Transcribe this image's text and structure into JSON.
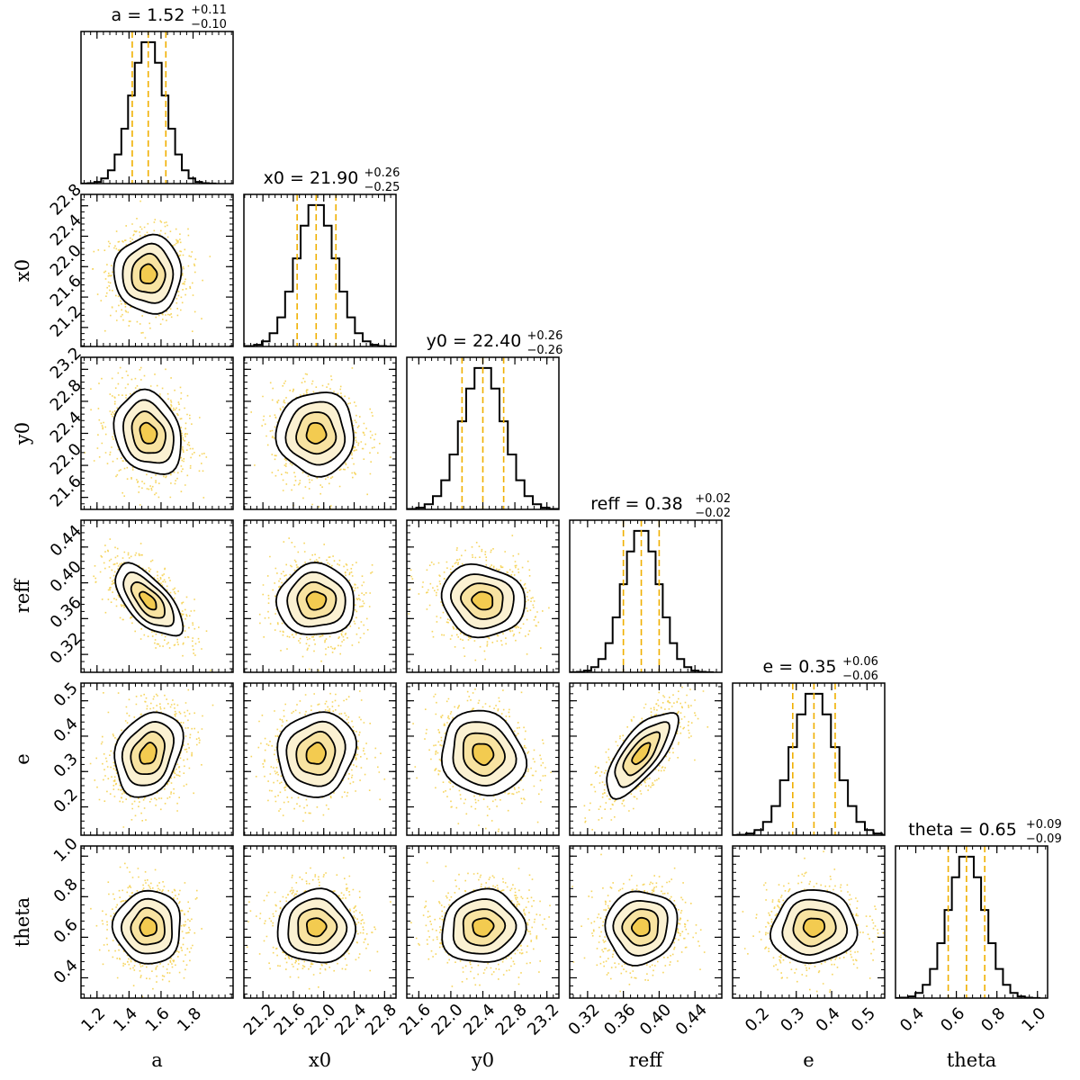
{
  "chart_data": {
    "type": "corner",
    "colors": {
      "scatter": "#f2c31b",
      "fill_light": "#fbf0d0",
      "fill_mid": "#f8e29e",
      "fill_dark": "#f2c94c",
      "contour": "#000000",
      "quantile_line": "#f0b000",
      "histogram": "#000000"
    },
    "parameters": [
      {
        "name": "a",
        "label": "a",
        "title": "a = 1.52",
        "err_plus": "+0.11",
        "err_minus": "−0.10",
        "median": 1.52,
        "q16": 1.42,
        "q84": 1.63,
        "sigma": 0.105,
        "range": [
          1.1,
          2.05
        ],
        "ticks": [
          1.2,
          1.4,
          1.6,
          1.8
        ],
        "tick_labels": [
          "1.2",
          "1.4",
          "1.6",
          "1.8"
        ]
      },
      {
        "name": "x0",
        "label": "x0",
        "title": "x0 = 21.90",
        "err_plus": "+0.26",
        "err_minus": "−0.25",
        "median": 21.9,
        "q16": 21.65,
        "q84": 22.16,
        "sigma": 0.255,
        "range": [
          20.95,
          22.95
        ],
        "ticks": [
          21.2,
          21.6,
          22.0,
          22.4,
          22.8
        ],
        "tick_labels": [
          "21.2",
          "21.6",
          "22.0",
          "22.4",
          "22.8"
        ]
      },
      {
        "name": "y0",
        "label": "y0",
        "title": "y0 = 22.40",
        "err_plus": "+0.26",
        "err_minus": "−0.26",
        "median": 22.4,
        "q16": 22.14,
        "q84": 22.66,
        "sigma": 0.26,
        "range": [
          21.45,
          23.35
        ],
        "ticks": [
          21.6,
          22.0,
          22.4,
          22.8,
          23.2
        ],
        "tick_labels": [
          "21.6",
          "22.0",
          "22.4",
          "22.8",
          "23.2"
        ]
      },
      {
        "name": "reff",
        "label": "reff",
        "title": "reff = 0.38",
        "err_plus": "+0.02",
        "err_minus": "−0.02",
        "median": 0.38,
        "q16": 0.36,
        "q84": 0.4,
        "sigma": 0.02,
        "range": [
          0.3,
          0.47
        ],
        "ticks": [
          0.32,
          0.36,
          0.4,
          0.44
        ],
        "tick_labels": [
          "0.32",
          "0.36",
          "0.40",
          "0.44"
        ]
      },
      {
        "name": "e",
        "label": "e",
        "title": "e = 0.35",
        "err_plus": "+0.06",
        "err_minus": "−0.06",
        "median": 0.35,
        "q16": 0.29,
        "q84": 0.41,
        "sigma": 0.06,
        "range": [
          0.12,
          0.55
        ],
        "ticks": [
          0.2,
          0.3,
          0.4,
          0.5
        ],
        "tick_labels": [
          "0.2",
          "0.3",
          "0.4",
          "0.5"
        ]
      },
      {
        "name": "theta",
        "label": "theta",
        "title": "theta = 0.65",
        "err_plus": "+0.09",
        "err_minus": "−0.09",
        "median": 0.65,
        "q16": 0.56,
        "q84": 0.74,
        "sigma": 0.09,
        "range": [
          0.3,
          1.05
        ],
        "ticks": [
          0.4,
          0.6,
          0.8,
          1.0
        ],
        "tick_labels": [
          "0.4",
          "0.6",
          "0.8",
          "1.0"
        ]
      }
    ],
    "correlations": [
      {
        "i": 1,
        "j": 0,
        "rho": 0.0
      },
      {
        "i": 2,
        "j": 0,
        "rho": -0.2
      },
      {
        "i": 2,
        "j": 1,
        "rho": 0.0
      },
      {
        "i": 3,
        "j": 0,
        "rho": -0.65
      },
      {
        "i": 3,
        "j": 1,
        "rho": 0.0
      },
      {
        "i": 3,
        "j": 2,
        "rho": -0.1
      },
      {
        "i": 4,
        "j": 0,
        "rho": 0.25
      },
      {
        "i": 4,
        "j": 1,
        "rho": 0.1
      },
      {
        "i": 4,
        "j": 2,
        "rho": -0.12
      },
      {
        "i": 4,
        "j": 3,
        "rho": 0.72
      },
      {
        "i": 5,
        "j": 0,
        "rho": 0.0
      },
      {
        "i": 5,
        "j": 1,
        "rho": 0.0
      },
      {
        "i": 5,
        "j": 2,
        "rho": 0.05
      },
      {
        "i": 5,
        "j": 3,
        "rho": 0.05
      },
      {
        "i": 5,
        "j": 4,
        "rho": 0.05
      }
    ],
    "contour_levels_sigma": [
      0.5,
      1.0,
      1.5,
      2.0
    ],
    "histogram_bins": 20
  }
}
